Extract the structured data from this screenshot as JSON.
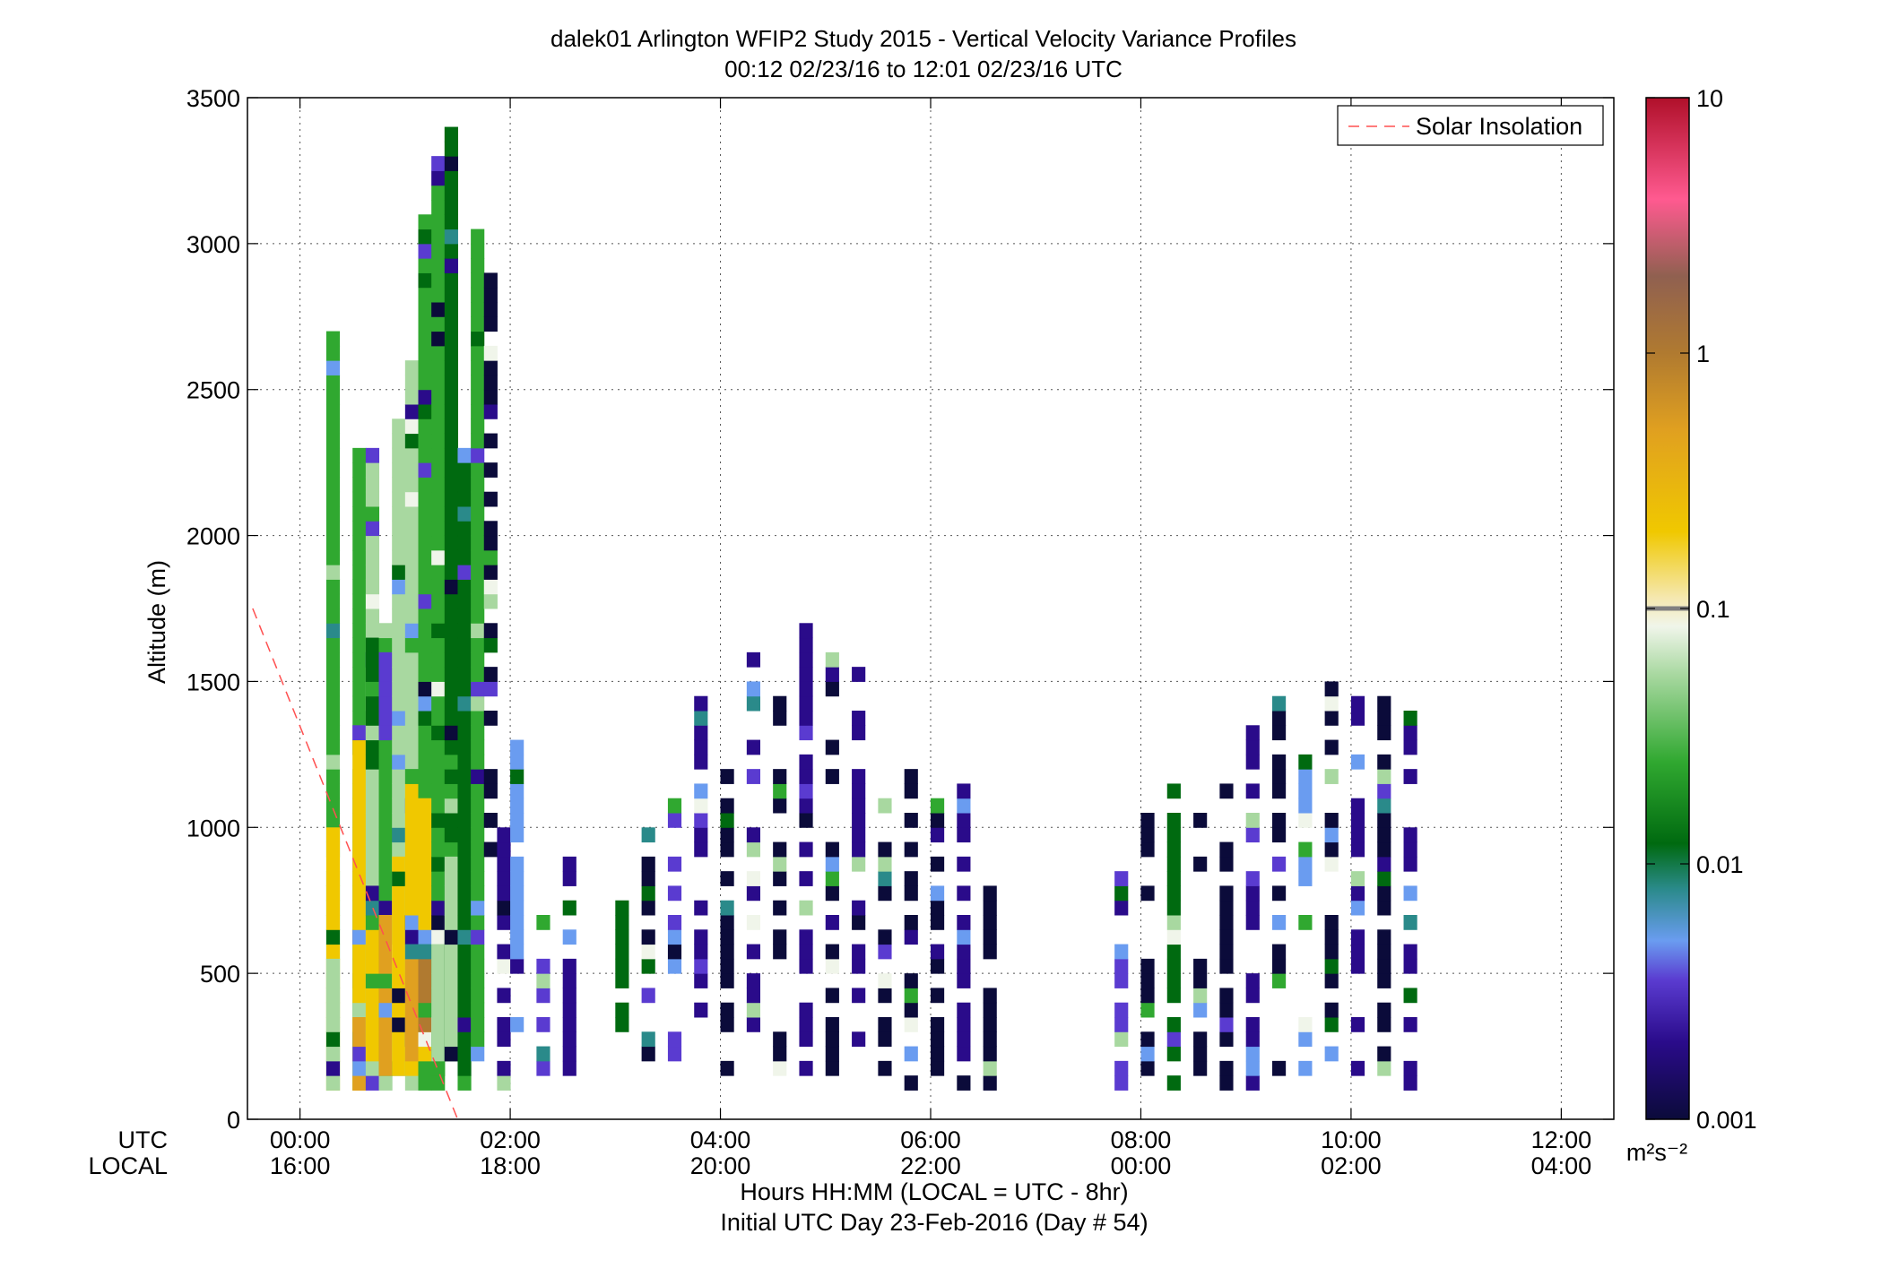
{
  "chart_data": {
    "type": "heatmap",
    "title": "dalek01 Arlington WFIP2 Study 2015 - Vertical Velocity Variance Profiles",
    "subtitle": "00:12 02/23/16 to 12:01 02/23/16  UTC",
    "ylabel": "Altitude (m)",
    "xlabel": "Hours HH:MM  (LOCAL = UTC - 8hr)",
    "xlabel2": "Initial UTC Day 23-Feb-2016 (Day # 54)",
    "xrow_labels": [
      "UTC",
      "LOCAL"
    ],
    "xlim_hours": [
      -0.5,
      12.5
    ],
    "ylim": [
      0,
      3500
    ],
    "yticks": [
      0,
      500,
      1000,
      1500,
      2000,
      2500,
      3000,
      3500
    ],
    "xticks_utc": [
      "00:00",
      "02:00",
      "04:00",
      "06:00",
      "08:00",
      "10:00",
      "12:00"
    ],
    "xticks_local": [
      "16:00",
      "18:00",
      "20:00",
      "22:00",
      "00:00",
      "02:00",
      "04:00"
    ],
    "grid": true,
    "legend": {
      "placement": "top-right",
      "entries": [
        "Solar Insolation"
      ],
      "color": "#ff5050",
      "style": "dashed"
    },
    "solar_line": {
      "x_hours": [
        -0.45,
        1.5
      ],
      "y": [
        1750,
        0
      ]
    },
    "colorbar": {
      "scale": "log",
      "ticks": [
        "10",
        "1",
        "0.1",
        "0.01",
        "0.001"
      ],
      "tick_values": [
        10,
        1,
        0.1,
        0.01,
        0.001
      ],
      "unit": "m²s⁻²",
      "colormap": [
        {
          "v": 0.001,
          "c": "#0b0b3a"
        },
        {
          "v": 0.002,
          "c": "#2a0b8a"
        },
        {
          "v": 0.0035,
          "c": "#5a3bd0"
        },
        {
          "v": 0.005,
          "c": "#6a9cf0"
        },
        {
          "v": 0.008,
          "c": "#2a8a8a"
        },
        {
          "v": 0.012,
          "c": "#006a10"
        },
        {
          "v": 0.025,
          "c": "#30a830"
        },
        {
          "v": 0.055,
          "c": "#a8d8a0"
        },
        {
          "v": 0.085,
          "c": "#f0f5ea"
        },
        {
          "v": 0.11,
          "c": "#f5e8b0"
        },
        {
          "v": 0.2,
          "c": "#f0c800"
        },
        {
          "v": 0.5,
          "c": "#e0a020"
        },
        {
          "v": 1.0,
          "c": "#b07a30"
        },
        {
          "v": 2.0,
          "c": "#906050"
        },
        {
          "v": 4.0,
          "c": "#ff5a90"
        },
        {
          "v": 10.0,
          "c": "#b0102a"
        }
      ],
      "colors": {
        "navy": "#0b0b3a",
        "indigo": "#2a0b8a",
        "violet": "#5a3bd0",
        "ltblue": "#6a9cf0",
        "teal": "#2a8a8a",
        "dkgreen": "#006a10",
        "green": "#30a830",
        "ltgreen": "#a8d8a0",
        "white": "#f0f5ea",
        "cream": "#f5e8b0",
        "yellow": "#f0c800",
        "orange": "#e0a020",
        "brown": "#b07a30",
        "pink": "#e05070",
        "gray": "#a0a0a0"
      }
    },
    "bin_width_hours": 0.125,
    "bin_height_m": 50,
    "cells_note": "columns: [start hour UTC, bottom altitude m, top altitude m, color key]",
    "columns": [
      [
        0.25,
        100,
        2700,
        "green"
      ],
      [
        0.25,
        100,
        1000,
        "yellow"
      ],
      [
        0.25,
        100,
        550,
        "ltgreen"
      ],
      [
        0.5,
        100,
        2300,
        "green"
      ],
      [
        0.5,
        100,
        1350,
        "yellow"
      ],
      [
        0.5,
        100,
        350,
        "orange"
      ],
      [
        0.625,
        100,
        2300,
        "ltgreen"
      ],
      [
        0.625,
        200,
        800,
        "yellow"
      ],
      [
        0.625,
        1200,
        1650,
        "dkgreen"
      ],
      [
        0.75,
        100,
        1700,
        "green"
      ],
      [
        0.75,
        150,
        700,
        "orange"
      ],
      [
        0.75,
        1300,
        1600,
        "violet"
      ],
      [
        0.875,
        150,
        2400,
        "ltgreen"
      ],
      [
        0.875,
        150,
        900,
        "yellow"
      ],
      [
        1.0,
        100,
        2600,
        "ltgreen"
      ],
      [
        1.0,
        150,
        1200,
        "yellow"
      ],
      [
        1.0,
        200,
        600,
        "orange"
      ],
      [
        1.125,
        100,
        3100,
        "green"
      ],
      [
        1.125,
        200,
        1100,
        "yellow"
      ],
      [
        1.125,
        300,
        600,
        "brown"
      ],
      [
        1.25,
        100,
        3300,
        "green"
      ],
      [
        1.25,
        150,
        600,
        "ltgreen"
      ],
      [
        1.375,
        200,
        3400,
        "dkgreen"
      ],
      [
        1.375,
        200,
        900,
        "ltgreen"
      ],
      [
        1.5,
        100,
        2300,
        "dkgreen"
      ],
      [
        1.625,
        200,
        3050,
        "green"
      ],
      [
        1.75,
        900,
        2900,
        "navy"
      ],
      [
        1.875,
        100,
        1000,
        "indigo"
      ],
      [
        2.0,
        300,
        1350,
        "ltblue"
      ],
      [
        2.25,
        100,
        700,
        "violet"
      ],
      [
        2.5,
        150,
        900,
        "indigo"
      ],
      [
        3.0,
        300,
        800,
        "dkgreen"
      ],
      [
        3.25,
        100,
        1000,
        "navy"
      ],
      [
        3.5,
        200,
        1100,
        "violet"
      ],
      [
        3.75,
        300,
        1450,
        "indigo"
      ],
      [
        4.0,
        150,
        1200,
        "navy"
      ],
      [
        4.25,
        300,
        1650,
        "indigo"
      ],
      [
        4.5,
        150,
        1450,
        "navy"
      ],
      [
        4.75,
        100,
        1700,
        "indigo"
      ],
      [
        5.0,
        100,
        1600,
        "navy"
      ],
      [
        5.25,
        200,
        1550,
        "indigo"
      ],
      [
        5.5,
        150,
        1100,
        "navy"
      ],
      [
        5.75,
        100,
        1200,
        "navy"
      ],
      [
        6.0,
        100,
        1150,
        "navy"
      ],
      [
        6.25,
        100,
        1150,
        "indigo"
      ],
      [
        6.5,
        100,
        800,
        "navy"
      ],
      [
        7.75,
        100,
        900,
        "violet"
      ],
      [
        8.0,
        150,
        1050,
        "navy"
      ],
      [
        8.25,
        100,
        1150,
        "dkgreen"
      ],
      [
        8.5,
        150,
        1050,
        "navy"
      ],
      [
        8.75,
        100,
        1200,
        "navy"
      ],
      [
        9.0,
        100,
        1400,
        "indigo"
      ],
      [
        9.25,
        150,
        1450,
        "navy"
      ],
      [
        9.5,
        150,
        1350,
        "ltblue"
      ],
      [
        9.75,
        150,
        1500,
        "navy"
      ],
      [
        10.0,
        100,
        1550,
        "indigo"
      ],
      [
        10.25,
        100,
        1450,
        "navy"
      ],
      [
        10.5,
        100,
        1450,
        "indigo"
      ]
    ]
  }
}
